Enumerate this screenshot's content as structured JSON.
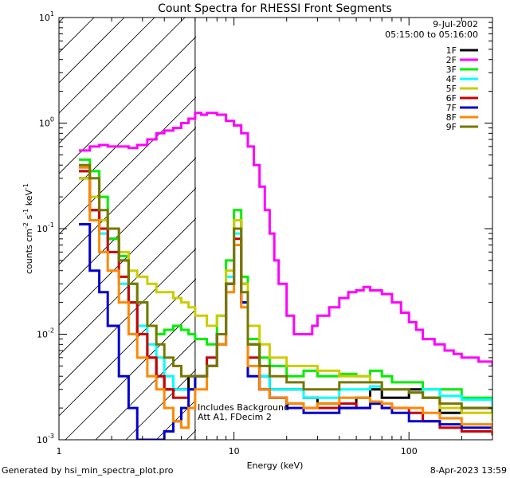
{
  "chart_data": {
    "type": "line",
    "title": "Count Spectra for RHESSI Front Segments",
    "xlabel": "Energy (keV)",
    "ylabel": "counts cm-2 s-1 keV-1",
    "ylabel_parts": {
      "base": "counts cm",
      "exp1": "-2",
      "mid": " s",
      "exp2": "-1",
      "tail": " keV",
      "exp3": "-1"
    },
    "xscale": "log",
    "yscale": "log",
    "xlim": [
      1,
      300
    ],
    "ylim": [
      0.001,
      10
    ],
    "x_tick_labels": [
      "1",
      "10",
      "100"
    ],
    "y_tick_labels": [
      {
        "base": "10",
        "exp": "-3"
      },
      {
        "base": "10",
        "exp": "-2"
      },
      {
        "base": "10",
        "exp": "-1"
      },
      {
        "base": "10",
        "exp": "0"
      },
      {
        "base": "10",
        "exp": "1"
      }
    ],
    "date_label": "9-Jul-2002",
    "time_range_label": "05:15:00 to 05:16:00",
    "annotation_line1": "Includes Background",
    "annotation_line2": "Att A1, FDecim 2",
    "hatched_region_xmax": 6,
    "legend_position": "top-right",
    "series": [
      {
        "name": "1F",
        "color": "#000000",
        "x": [
          1.3,
          1.5,
          1.7,
          1.9,
          2.2,
          2.5,
          2.8,
          3.2,
          3.6,
          4.0,
          4.5,
          5.0,
          5.5,
          6.0,
          7,
          8,
          9,
          10,
          11,
          12,
          14,
          16,
          20,
          25,
          30,
          40,
          50,
          60,
          70,
          80,
          100,
          120,
          150,
          200,
          300
        ],
        "y": [
          0.3,
          0.15,
          0.1,
          0.08,
          0.05,
          0.02,
          0.01,
          0.006,
          0.004,
          0.003,
          0.003,
          0.003,
          0.004,
          0.004,
          0.005,
          0.008,
          0.03,
          0.12,
          0.03,
          0.008,
          0.004,
          0.003,
          0.003,
          0.0025,
          0.0022,
          0.002,
          0.0025,
          0.003,
          0.0025,
          0.0025,
          0.003,
          0.0025,
          0.0018,
          0.002,
          0.0015
        ]
      },
      {
        "name": "2F",
        "color": "#ff00ff",
        "x": [
          1.3,
          1.5,
          1.7,
          1.9,
          2.2,
          2.5,
          2.8,
          3.2,
          3.6,
          4.0,
          4.5,
          5.0,
          5.5,
          6.0,
          6.5,
          7,
          7.5,
          8,
          9,
          10,
          11,
          12,
          13,
          14,
          15,
          16,
          17,
          18,
          20,
          22,
          25,
          28,
          30,
          35,
          40,
          45,
          50,
          55,
          60,
          70,
          80,
          90,
          100,
          110,
          120,
          140,
          160,
          180,
          200,
          250,
          300
        ],
        "y": [
          0.55,
          0.6,
          0.62,
          0.6,
          0.6,
          0.58,
          0.62,
          0.7,
          0.8,
          0.85,
          0.9,
          1.0,
          1.1,
          1.25,
          1.2,
          1.25,
          1.25,
          1.2,
          1.05,
          0.95,
          0.8,
          0.6,
          0.4,
          0.25,
          0.15,
          0.09,
          0.05,
          0.03,
          0.015,
          0.01,
          0.01,
          0.012,
          0.015,
          0.018,
          0.022,
          0.025,
          0.026,
          0.028,
          0.026,
          0.024,
          0.02,
          0.016,
          0.013,
          0.011,
          0.009,
          0.008,
          0.007,
          0.0065,
          0.006,
          0.0055,
          0.005
        ]
      },
      {
        "name": "3F",
        "color": "#00ee00",
        "x": [
          1.3,
          1.5,
          1.7,
          1.9,
          2.2,
          2.5,
          2.8,
          3.2,
          3.6,
          4.0,
          4.5,
          5.0,
          5.5,
          6.0,
          7,
          8,
          9,
          10,
          11,
          12,
          14,
          16,
          20,
          25,
          30,
          40,
          50,
          60,
          70,
          80,
          100,
          120,
          150,
          200,
          300
        ],
        "y": [
          0.45,
          0.35,
          0.2,
          0.08,
          0.055,
          0.03,
          0.02,
          0.012,
          0.01,
          0.011,
          0.012,
          0.011,
          0.01,
          0.009,
          0.008,
          0.015,
          0.05,
          0.15,
          0.035,
          0.009,
          0.006,
          0.005,
          0.004,
          0.0045,
          0.004,
          0.0042,
          0.004,
          0.0045,
          0.004,
          0.0035,
          0.0035,
          0.003,
          0.003,
          0.0025,
          0.002
        ]
      },
      {
        "name": "4F",
        "color": "#00ffff",
        "x": [
          1.3,
          1.5,
          1.7,
          1.9,
          2.2,
          2.5,
          2.8,
          3.2,
          3.6,
          4.0,
          4.5,
          5.0,
          5.5,
          6.0,
          7,
          8,
          9,
          10,
          11,
          12,
          14,
          16,
          20,
          25,
          30,
          40,
          50,
          60,
          70,
          80,
          100,
          120,
          150,
          200,
          300
        ],
        "y": [
          0.35,
          0.15,
          0.09,
          0.06,
          0.03,
          0.02,
          0.012,
          0.008,
          0.006,
          0.004,
          0.003,
          0.003,
          0.003,
          0.004,
          0.006,
          0.01,
          0.035,
          0.09,
          0.02,
          0.006,
          0.004,
          0.003,
          0.003,
          0.0025,
          0.0025,
          0.003,
          0.003,
          0.0032,
          0.003,
          0.003,
          0.0028,
          0.003,
          0.0026,
          0.0024,
          0.002
        ]
      },
      {
        "name": "5F",
        "color": "#cccc00",
        "x": [
          1.3,
          1.5,
          1.7,
          1.9,
          2.2,
          2.5,
          2.8,
          3.2,
          3.6,
          4.0,
          4.5,
          5.0,
          5.5,
          6.0,
          7,
          8,
          9,
          10,
          11,
          12,
          14,
          16,
          20,
          25,
          30,
          40,
          50,
          60,
          70,
          80,
          100,
          120,
          150,
          200,
          300
        ],
        "y": [
          0.3,
          0.2,
          0.12,
          0.1,
          0.06,
          0.04,
          0.035,
          0.03,
          0.025,
          0.025,
          0.022,
          0.02,
          0.018,
          0.015,
          0.012,
          0.015,
          0.04,
          0.12,
          0.03,
          0.012,
          0.008,
          0.006,
          0.005,
          0.005,
          0.0045,
          0.004,
          0.004,
          0.0035,
          0.003,
          0.003,
          0.0028,
          0.0025,
          0.002,
          0.0018,
          0.0015
        ]
      },
      {
        "name": "6F",
        "color": "#cc0000",
        "x": [
          1.3,
          1.5,
          1.7,
          1.9,
          2.2,
          2.5,
          2.8,
          3.2,
          3.6,
          4.0,
          4.5,
          5.0,
          5.5,
          6.0,
          7,
          8,
          9,
          10,
          11,
          12,
          14,
          16,
          20,
          25,
          30,
          40,
          50,
          60,
          70,
          80,
          100,
          120,
          150,
          200,
          300
        ],
        "y": [
          0.35,
          0.15,
          0.1,
          0.06,
          0.035,
          0.02,
          0.01,
          0.006,
          0.004,
          0.003,
          0.0025,
          0.0025,
          0.003,
          0.004,
          0.006,
          0.01,
          0.03,
          0.08,
          0.02,
          0.006,
          0.003,
          0.0025,
          0.0022,
          0.002,
          0.002,
          0.0022,
          0.002,
          0.0022,
          0.002,
          0.002,
          0.0018,
          0.0015,
          0.0013,
          0.0012,
          0.0011
        ]
      },
      {
        "name": "7F",
        "color": "#0000cc",
        "x": [
          1.3,
          1.5,
          1.7,
          1.9,
          2.2,
          2.5,
          2.8,
          3.2,
          3.6,
          4.0,
          4.5,
          5.0,
          5.5,
          6.0,
          7,
          8,
          9,
          10,
          11,
          12,
          14,
          16,
          20,
          25,
          30,
          40,
          50,
          60,
          70,
          80,
          100,
          120,
          150,
          200,
          300
        ],
        "y": [
          0.11,
          0.04,
          0.025,
          0.012,
          0.004,
          0.002,
          0.001,
          0.001,
          0.001,
          0.0012,
          0.0015,
          0.002,
          0.003,
          0.004,
          0.005,
          0.01,
          0.03,
          0.07,
          0.02,
          0.004,
          0.003,
          0.0025,
          0.002,
          0.0018,
          0.0018,
          0.002,
          0.002,
          0.0022,
          0.002,
          0.0018,
          0.0015,
          0.0015,
          0.0014,
          0.0013,
          0.0012
        ]
      },
      {
        "name": "8F",
        "color": "#ff8800",
        "x": [
          1.3,
          1.5,
          1.7,
          1.9,
          2.2,
          2.5,
          2.8,
          3.2,
          3.6,
          4.0,
          4.5,
          5.0,
          5.5,
          6.0,
          7,
          8,
          9,
          10,
          11,
          12,
          14,
          16,
          20,
          25,
          30,
          40,
          50,
          60,
          70,
          80,
          100,
          120,
          150,
          200,
          300
        ],
        "y": [
          0.38,
          0.12,
          0.06,
          0.04,
          0.02,
          0.01,
          0.006,
          0.004,
          0.003,
          0.002,
          0.0015,
          0.0013,
          0.002,
          0.003,
          0.005,
          0.008,
          0.025,
          0.07,
          0.018,
          0.005,
          0.003,
          0.0025,
          0.0022,
          0.002,
          0.0022,
          0.0025,
          0.0025,
          0.0023,
          0.0022,
          0.002,
          0.002,
          0.0018,
          0.0016,
          0.0014,
          0.0012
        ]
      },
      {
        "name": "9F",
        "color": "#777700",
        "x": [
          1.3,
          1.5,
          1.7,
          1.9,
          2.2,
          2.5,
          2.8,
          3.2,
          3.6,
          4.0,
          4.5,
          5.0,
          5.5,
          6.0,
          7,
          8,
          9,
          10,
          11,
          12,
          14,
          16,
          20,
          25,
          30,
          40,
          50,
          60,
          70,
          80,
          100,
          120,
          150,
          200,
          300
        ],
        "y": [
          0.4,
          0.3,
          0.15,
          0.1,
          0.05,
          0.03,
          0.02,
          0.012,
          0.008,
          0.006,
          0.005,
          0.004,
          0.004,
          0.004,
          0.005,
          0.01,
          0.03,
          0.1,
          0.025,
          0.008,
          0.005,
          0.004,
          0.0035,
          0.003,
          0.003,
          0.0035,
          0.0035,
          0.0035,
          0.003,
          0.003,
          0.0028,
          0.0025,
          0.0022,
          0.002,
          0.0018
        ]
      }
    ]
  },
  "footer": {
    "generated_by": "Generated by hsi_min_spectra_plot.pro",
    "timestamp": "8-Apr-2023 13:59"
  }
}
